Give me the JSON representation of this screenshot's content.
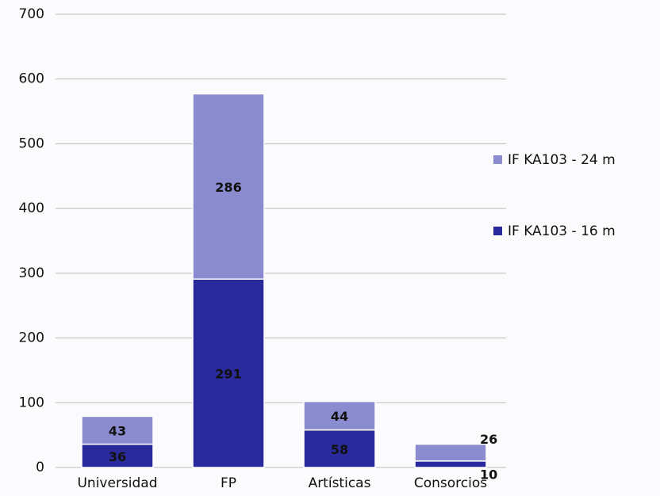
{
  "chart_data": {
    "type": "stacked_bar",
    "categories": [
      "Universidad",
      "FP",
      "Artísticas",
      "Consorcios"
    ],
    "series": [
      {
        "name": "IF KA103 - 16 m",
        "color": "#2b2a9c",
        "values": [
          36,
          291,
          58,
          10
        ]
      },
      {
        "name": "IF KA103 - 24 m",
        "color": "#8b8bd0",
        "values": [
          43,
          286,
          44,
          26
        ]
      }
    ],
    "ylim": [
      0,
      700
    ],
    "yticks": [
      0,
      100,
      200,
      300,
      400,
      500,
      600,
      700
    ],
    "grid": true
  }
}
